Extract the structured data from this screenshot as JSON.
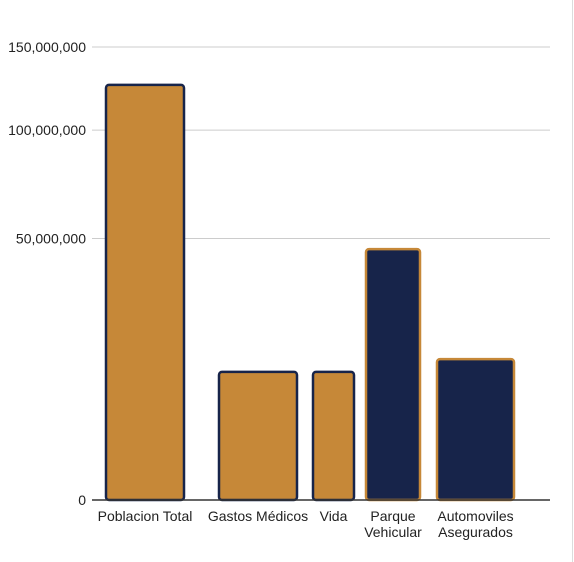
{
  "colors": {
    "gold": "#c68838",
    "navy": "#17244a",
    "grid": "#cccccc",
    "axis": "#333333",
    "text": "#222222"
  },
  "chart_data": {
    "type": "bar",
    "categories": [
      [
        "Poblacion Total"
      ],
      [
        "Gastos Médicos"
      ],
      [
        "Vida"
      ],
      [
        "Parque",
        "Vehicular"
      ],
      [
        "Automoviles",
        "Asegurados"
      ]
    ],
    "values": [
      126000000,
      12000000,
      12000000,
      46000000,
      14500000
    ],
    "bar_colors": [
      "gold",
      "gold",
      "gold",
      "navy",
      "navy"
    ],
    "border_colors": [
      "navy",
      "navy",
      "navy",
      "gold",
      "gold"
    ],
    "y_ticks": [
      {
        "value": 0,
        "label": "0"
      },
      {
        "value": 50000000,
        "label": "50,000,000"
      },
      {
        "value": 100000000,
        "label": "100,000,000"
      },
      {
        "value": 150000000,
        "label": "150,000,000"
      }
    ],
    "ylim": [
      0,
      150000000
    ],
    "y_scale": "sqrt",
    "grid": true,
    "legend": "none"
  }
}
